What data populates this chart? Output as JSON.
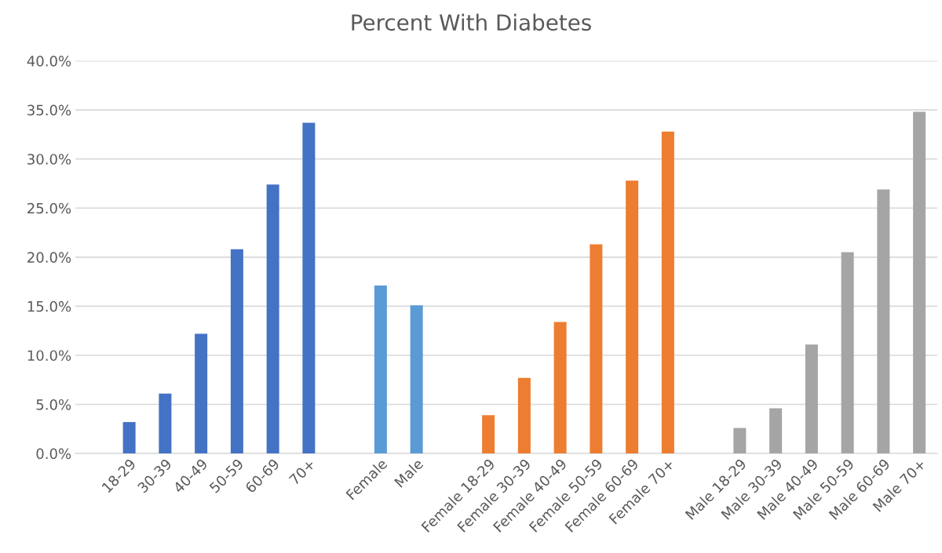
{
  "chart_data": {
    "type": "bar",
    "title": "Percent With Diabetes",
    "categories": [
      null,
      "18-29",
      "30-39",
      "40-49",
      "50-59",
      "60-69",
      "70+",
      null,
      "Female",
      "Male",
      null,
      "Female 18-29",
      "Female 30-39",
      "Female 40-49",
      "Female 50-59",
      "Female 60-69",
      "Female 70+",
      null,
      "Male 18-29",
      "Male 30-39",
      "Male 40-49",
      "Male 50-59",
      "Male 60-69",
      "Male 70+"
    ],
    "values": [
      null,
      3.2,
      6.1,
      12.2,
      20.8,
      27.4,
      33.7,
      null,
      17.1,
      15.1,
      null,
      3.9,
      7.7,
      13.4,
      21.3,
      27.8,
      32.8,
      null,
      2.6,
      4.6,
      11.1,
      20.5,
      26.9,
      34.8
    ],
    "colors": [
      null,
      "#4472c4",
      "#4472c4",
      "#4472c4",
      "#4472c4",
      "#4472c4",
      "#4472c4",
      null,
      "#5b9bd5",
      "#5b9bd5",
      null,
      "#ed7d31",
      "#ed7d31",
      "#ed7d31",
      "#ed7d31",
      "#ed7d31",
      "#ed7d31",
      null,
      "#a5a5a5",
      "#a5a5a5",
      "#a5a5a5",
      "#a5a5a5",
      "#a5a5a5",
      "#a5a5a5"
    ],
    "ylim": [
      0,
      40
    ],
    "yticks": [
      {
        "value": 0,
        "label": "0.0%"
      },
      {
        "value": 5,
        "label": "5.0%"
      },
      {
        "value": 10,
        "label": "10.0%"
      },
      {
        "value": 15,
        "label": "15.0%"
      },
      {
        "value": 20,
        "label": "20.0%"
      },
      {
        "value": 25,
        "label": "25.0%"
      },
      {
        "value": 30,
        "label": "30.0%"
      },
      {
        "value": 35,
        "label": "35.0%"
      },
      {
        "value": 40,
        "label": "40.0%"
      }
    ],
    "grid": "y",
    "legend": false
  }
}
